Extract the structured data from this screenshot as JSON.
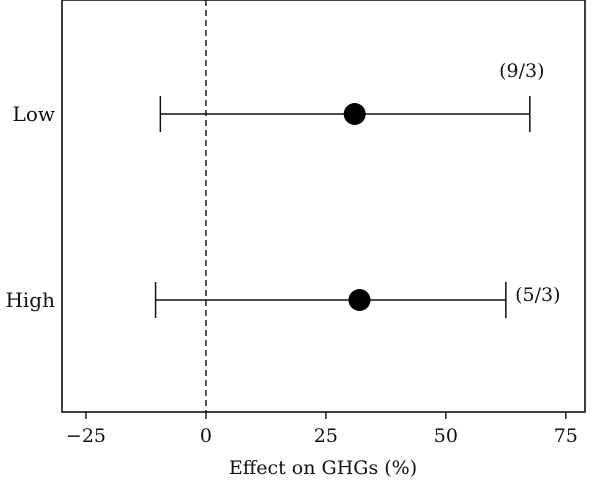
{
  "chart_data": {
    "type": "forest",
    "xlabel": "Effect on GHGs (%)",
    "xlim": [
      -30,
      79
    ],
    "x_ticks": [
      -25,
      0,
      25,
      50,
      75
    ],
    "x_tick_labels": [
      "−25",
      "0",
      "25",
      "50",
      "75"
    ],
    "reference_line": {
      "x": 0,
      "style": "dashed"
    },
    "grid": false,
    "categories": [
      "Low",
      "High"
    ],
    "points": [
      {
        "category": "Low",
        "estimate": 31,
        "ci_low": -9.5,
        "ci_high": 67.5,
        "annotation": "(9/3)"
      },
      {
        "category": "High",
        "estimate": 32,
        "ci_low": -10.5,
        "ci_high": 62.5,
        "annotation": "(5/3)"
      }
    ]
  }
}
